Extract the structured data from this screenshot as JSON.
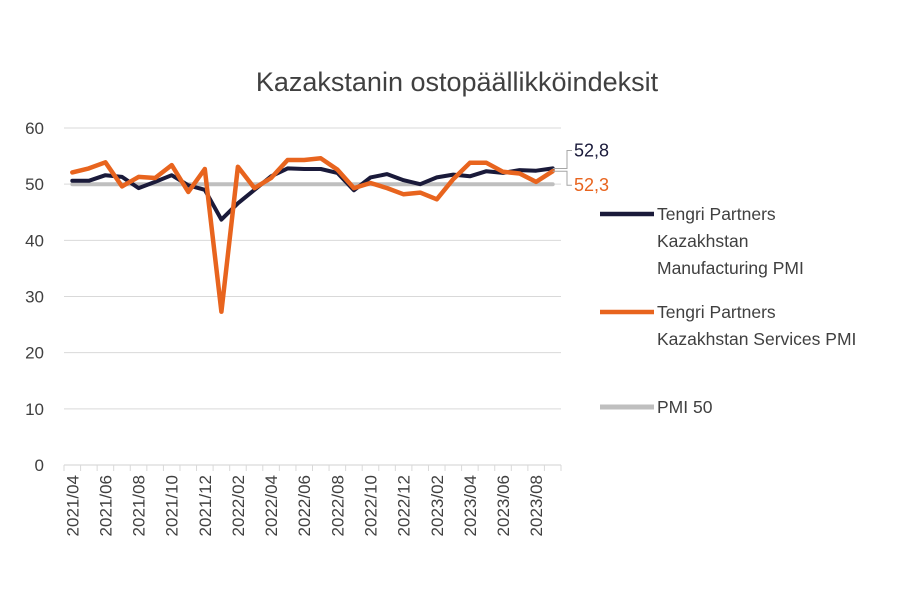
{
  "chart_data": {
    "type": "line",
    "title": "Kazakstanin ostopäällikköindeksit",
    "xlabel": "",
    "ylabel": "",
    "ylim": [
      0,
      60
    ],
    "yticks": [
      "0",
      "10",
      "20",
      "30",
      "40",
      "50",
      "60"
    ],
    "grid": true,
    "legend_position": "right",
    "x": [
      "2021/04",
      "2021/05",
      "2021/06",
      "2021/07",
      "2021/08",
      "2021/09",
      "2021/10",
      "2021/11",
      "2021/12",
      "2022/01",
      "2022/02",
      "2022/03",
      "2022/04",
      "2022/05",
      "2022/06",
      "2022/07",
      "2022/08",
      "2022/09",
      "2022/10",
      "2022/11",
      "2022/12",
      "2023/01",
      "2023/02",
      "2023/03",
      "2023/04",
      "2023/05",
      "2023/06",
      "2023/07",
      "2023/08",
      "2023/09"
    ],
    "x_tick_labels": [
      "2021/04",
      "2021/06",
      "2021/08",
      "2021/10",
      "2021/12",
      "2022/02",
      "2022/04",
      "2022/06",
      "2022/08",
      "2022/10",
      "2022/12",
      "2023/02",
      "2023/04",
      "2023/06",
      "2023/08"
    ],
    "series": [
      {
        "name": "Tengri Partners Kazakhstan Manufacturing PMI",
        "legend_lines": [
          "Tengri Partners",
          "Kazakhstan",
          "Manufacturing PMI"
        ],
        "color": "#1a1a3a",
        "values": [
          50.6,
          50.6,
          51.6,
          51.3,
          49.3,
          50.4,
          51.6,
          49.8,
          49.0,
          43.7,
          46.6,
          49.0,
          51.4,
          52.8,
          52.7,
          52.7,
          52.0,
          48.9,
          51.2,
          51.8,
          50.7,
          50.0,
          51.2,
          51.7,
          51.4,
          52.3,
          52.0,
          52.5,
          52.4,
          52.8
        ],
        "end_label": "52,8"
      },
      {
        "name": "Tengri Partners Kazakhstan Services PMI",
        "legend_lines": [
          "Tengri Partners",
          "Kazakhstan Services PMI"
        ],
        "color": "#e8641e",
        "values": [
          52.1,
          52.8,
          53.9,
          49.6,
          51.3,
          51.1,
          53.4,
          48.6,
          52.7,
          27.3,
          53.1,
          49.3,
          51.1,
          54.3,
          54.3,
          54.6,
          52.6,
          49.3,
          50.2,
          49.3,
          48.2,
          48.5,
          47.3,
          50.9,
          53.8,
          53.8,
          52.2,
          51.9,
          50.4,
          52.3
        ],
        "end_label": "52,3"
      },
      {
        "name": "PMI 50",
        "legend_lines": [
          "PMI 50"
        ],
        "color": "#bfbfbf",
        "values": [
          50,
          50,
          50,
          50,
          50,
          50,
          50,
          50,
          50,
          50,
          50,
          50,
          50,
          50,
          50,
          50,
          50,
          50,
          50,
          50,
          50,
          50,
          50,
          50,
          50,
          50,
          50,
          50,
          50,
          50
        ]
      }
    ]
  }
}
